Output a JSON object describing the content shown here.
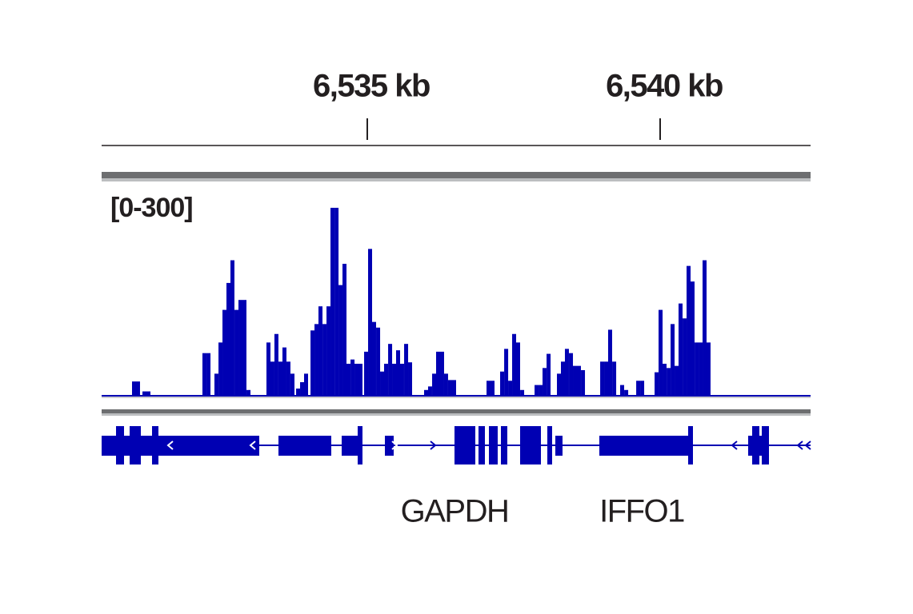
{
  "chart_data": {
    "type": "bar",
    "range_label": "[0-300]",
    "color": "#0000b3",
    "xlim": [
      6530.465,
      6542.568
    ],
    "xticks": [
      {
        "value": 6535,
        "label": "6,535 kb"
      },
      {
        "value": 6540,
        "label": "6,540 kb"
      }
    ],
    "ylim": [
      0,
      300
    ],
    "x": [
      6530.984,
      6531.052,
      6531.162,
      6531.23,
      6532.186,
      6532.255,
      6532.391,
      6532.46,
      6532.528,
      6532.596,
      6532.664,
      6532.733,
      6532.801,
      6532.869,
      6532.938,
      6533.279,
      6533.347,
      6533.415,
      6533.484,
      6533.552,
      6533.62,
      6533.689,
      6533.785,
      6533.853,
      6533.921,
      6534.031,
      6534.099,
      6534.167,
      6534.236,
      6534.304,
      6534.372,
      6534.441,
      6534.509,
      6534.577,
      6534.645,
      6534.714,
      6534.782,
      6534.85,
      6534.946,
      6535.014,
      6535.082,
      6535.151,
      6535.219,
      6535.287,
      6535.356,
      6535.424,
      6535.492,
      6535.56,
      6535.629,
      6535.697,
      6535.97,
      6536.038,
      6536.107,
      6536.175,
      6536.243,
      6536.311,
      6536.38,
      6536.448,
      6537.036,
      6537.104,
      6537.268,
      6537.337,
      6537.405,
      6537.473,
      6537.541,
      6537.61,
      6537.856,
      6537.924,
      6537.992,
      6538.061,
      6538.238,
      6538.306,
      6538.374,
      6538.443,
      6538.511,
      6538.579,
      6538.648,
      6538.976,
      6539.044,
      6539.112,
      6539.181,
      6539.317,
      6539.386,
      6539.591,
      6539.659,
      6539.905,
      6539.973,
      6540.041,
      6540.11,
      6540.178,
      6540.246,
      6540.314,
      6540.383,
      6540.451,
      6540.519,
      6540.588,
      6540.656,
      6540.724,
      6540.792
    ],
    "values": [
      19,
      19,
      5,
      5,
      59,
      59,
      30,
      74,
      120,
      158,
      190,
      120,
      134,
      134,
      7,
      74,
      47,
      86,
      47,
      67,
      47,
      30,
      9,
      18,
      30,
      91,
      100,
      125,
      100,
      125,
      264,
      264,
      155,
      185,
      44,
      50,
      44,
      44,
      61,
      206,
      103,
      95,
      33,
      44,
      72,
      44,
      63,
      44,
      72,
      46,
      7,
      12,
      30,
      61,
      61,
      30,
      21,
      21,
      20,
      20,
      33,
      65,
      20,
      86,
      74,
      7,
      14,
      14,
      38,
      58,
      30,
      47,
      65,
      59,
      41,
      41,
      35,
      47,
      47,
      92,
      47,
      14,
      7,
      20,
      20,
      32,
      120,
      44,
      38,
      100,
      41,
      129,
      108,
      182,
      160,
      74,
      74,
      190,
      74
    ],
    "genes": [
      "GAPDH",
      "IFFO1"
    ]
  }
}
